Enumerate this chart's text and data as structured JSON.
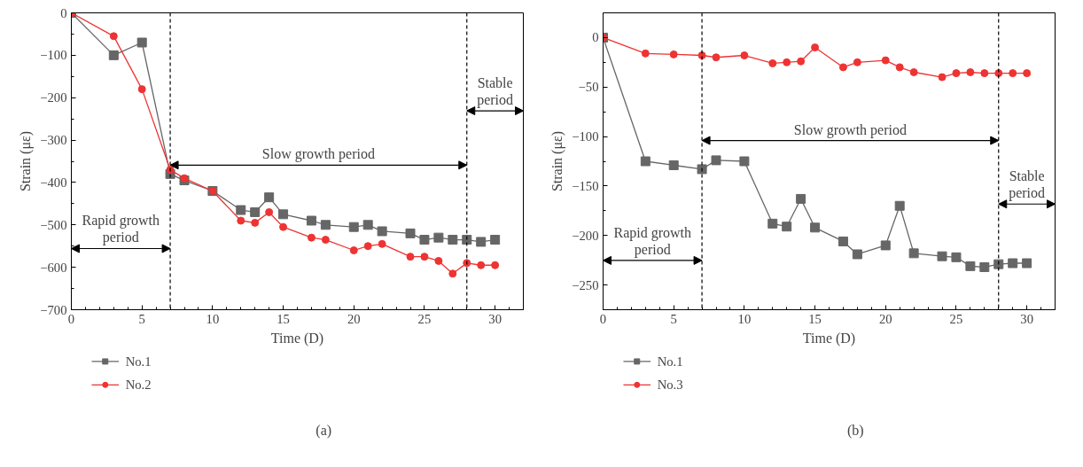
{
  "chart_data": [
    {
      "type": "line",
      "title": "(a)",
      "xlabel": "Time (D)",
      "ylabel": "Strain (με)",
      "xlim": [
        0,
        32
      ],
      "ylim": [
        -700,
        0
      ],
      "xticks": [
        0,
        5,
        10,
        15,
        20,
        25,
        30
      ],
      "yticks": [
        0,
        -100,
        -200,
        -300,
        -400,
        -500,
        -600,
        -700
      ],
      "grid": false,
      "legend": "bottom left",
      "ref_lines": [
        {
          "axis": "x",
          "value": 7,
          "color": "#000000",
          "line_style": "dashed"
        },
        {
          "axis": "x",
          "value": 28,
          "color": "#000000",
          "line_style": "dashed"
        }
      ],
      "annotations": [
        "Rapid growth\nperiod",
        "Slow growth period",
        "Stable\nperiod"
      ],
      "series": [
        {
          "name": "No.1",
          "color": "#666666",
          "marker": "square",
          "x": [
            0,
            3,
            5,
            7,
            8,
            10,
            12,
            13,
            14,
            15,
            17,
            18,
            20,
            21,
            22,
            24,
            25,
            26,
            27,
            28,
            29,
            30
          ],
          "values": [
            0,
            -100,
            -70,
            -380,
            -395,
            -420,
            -465,
            -470,
            -435,
            -475,
            -490,
            -500,
            -505,
            -500,
            -515,
            -520,
            -535,
            -530,
            -535,
            -535,
            -540,
            -535
          ]
        },
        {
          "name": "No.2",
          "color": "#ee3333",
          "marker": "circle",
          "x": [
            0,
            3,
            5,
            7,
            8,
            10,
            12,
            13,
            14,
            15,
            17,
            18,
            20,
            21,
            22,
            24,
            25,
            26,
            27,
            28,
            29,
            30
          ],
          "values": [
            0,
            -55,
            -180,
            -370,
            -390,
            -420,
            -490,
            -495,
            -470,
            -505,
            -530,
            -535,
            -560,
            -550,
            -545,
            -575,
            -575,
            -585,
            -615,
            -590,
            -595,
            -595
          ]
        }
      ]
    },
    {
      "type": "line",
      "title": "(b)",
      "xlabel": "Time (D)",
      "ylabel": "Strain (με)",
      "xlim": [
        0,
        32
      ],
      "ylim": [
        -275,
        25
      ],
      "xticks": [
        0,
        5,
        10,
        15,
        20,
        25,
        30
      ],
      "yticks": [
        0,
        -50,
        -100,
        -150,
        -200,
        -250
      ],
      "grid": false,
      "legend": "bottom left",
      "ref_lines": [
        {
          "axis": "x",
          "value": 7,
          "color": "#000000",
          "line_style": "dashed"
        },
        {
          "axis": "x",
          "value": 28,
          "color": "#000000",
          "line_style": "dashed"
        }
      ],
      "annotations": [
        "Rapid growth\nperiod",
        "Slow growth period",
        "Stable\nperiod"
      ],
      "series": [
        {
          "name": "No.1",
          "color": "#666666",
          "marker": "square",
          "x": [
            0,
            3,
            5,
            7,
            8,
            10,
            12,
            13,
            14,
            15,
            17,
            18,
            20,
            21,
            22,
            24,
            25,
            26,
            27,
            28,
            29,
            30
          ],
          "values": [
            0,
            -125,
            -129,
            -133,
            -124,
            -125,
            -188,
            -191,
            -163,
            -192,
            -206,
            -219,
            -210,
            -170,
            -218,
            -221,
            -222,
            -231,
            -232,
            -229,
            -228,
            -228
          ]
        },
        {
          "name": "No.3",
          "color": "#ee3333",
          "marker": "circle",
          "x": [
            0,
            3,
            5,
            7,
            8,
            10,
            12,
            13,
            14,
            15,
            17,
            18,
            20,
            21,
            22,
            24,
            25,
            26,
            27,
            28,
            29,
            30
          ],
          "values": [
            0,
            -16,
            -17,
            -18,
            -20,
            -18,
            -26,
            -25,
            -24,
            -10,
            -30,
            -25,
            -23,
            -30,
            -35,
            -40,
            -36,
            -35,
            -36,
            -36,
            -36,
            -36
          ]
        }
      ]
    }
  ]
}
